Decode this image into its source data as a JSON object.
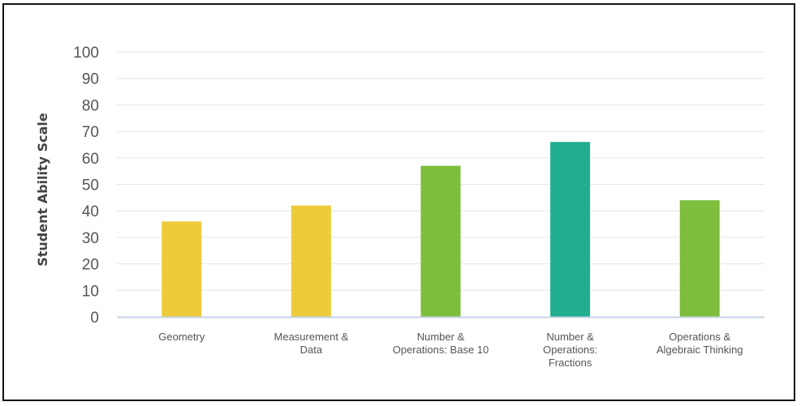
{
  "chart_data": {
    "type": "bar",
    "title": "",
    "xlabel": "",
    "ylabel": "Student Ability Scale",
    "ylim": [
      0,
      100
    ],
    "yticks": [
      0,
      10,
      20,
      30,
      40,
      50,
      60,
      70,
      80,
      90,
      100
    ],
    "grid": true,
    "legend": "none",
    "categories": [
      [
        "Geometry"
      ],
      [
        "Measurement &",
        "Data"
      ],
      [
        "Number &",
        "Operations: Base 10"
      ],
      [
        "Number &",
        "Operations:",
        "Fractions"
      ],
      [
        "Operations &",
        "Algebraic Thinking"
      ]
    ],
    "values": [
      36,
      42,
      57,
      66,
      44
    ],
    "bar_colors": [
      "#EDCB3A",
      "#EDCB3A",
      "#7DBE3C",
      "#20AE8E",
      "#7DBE3C"
    ],
    "colors": {
      "grid": "#E6E6E6",
      "axis": "#C6D3E6",
      "text": "#555555"
    }
  }
}
